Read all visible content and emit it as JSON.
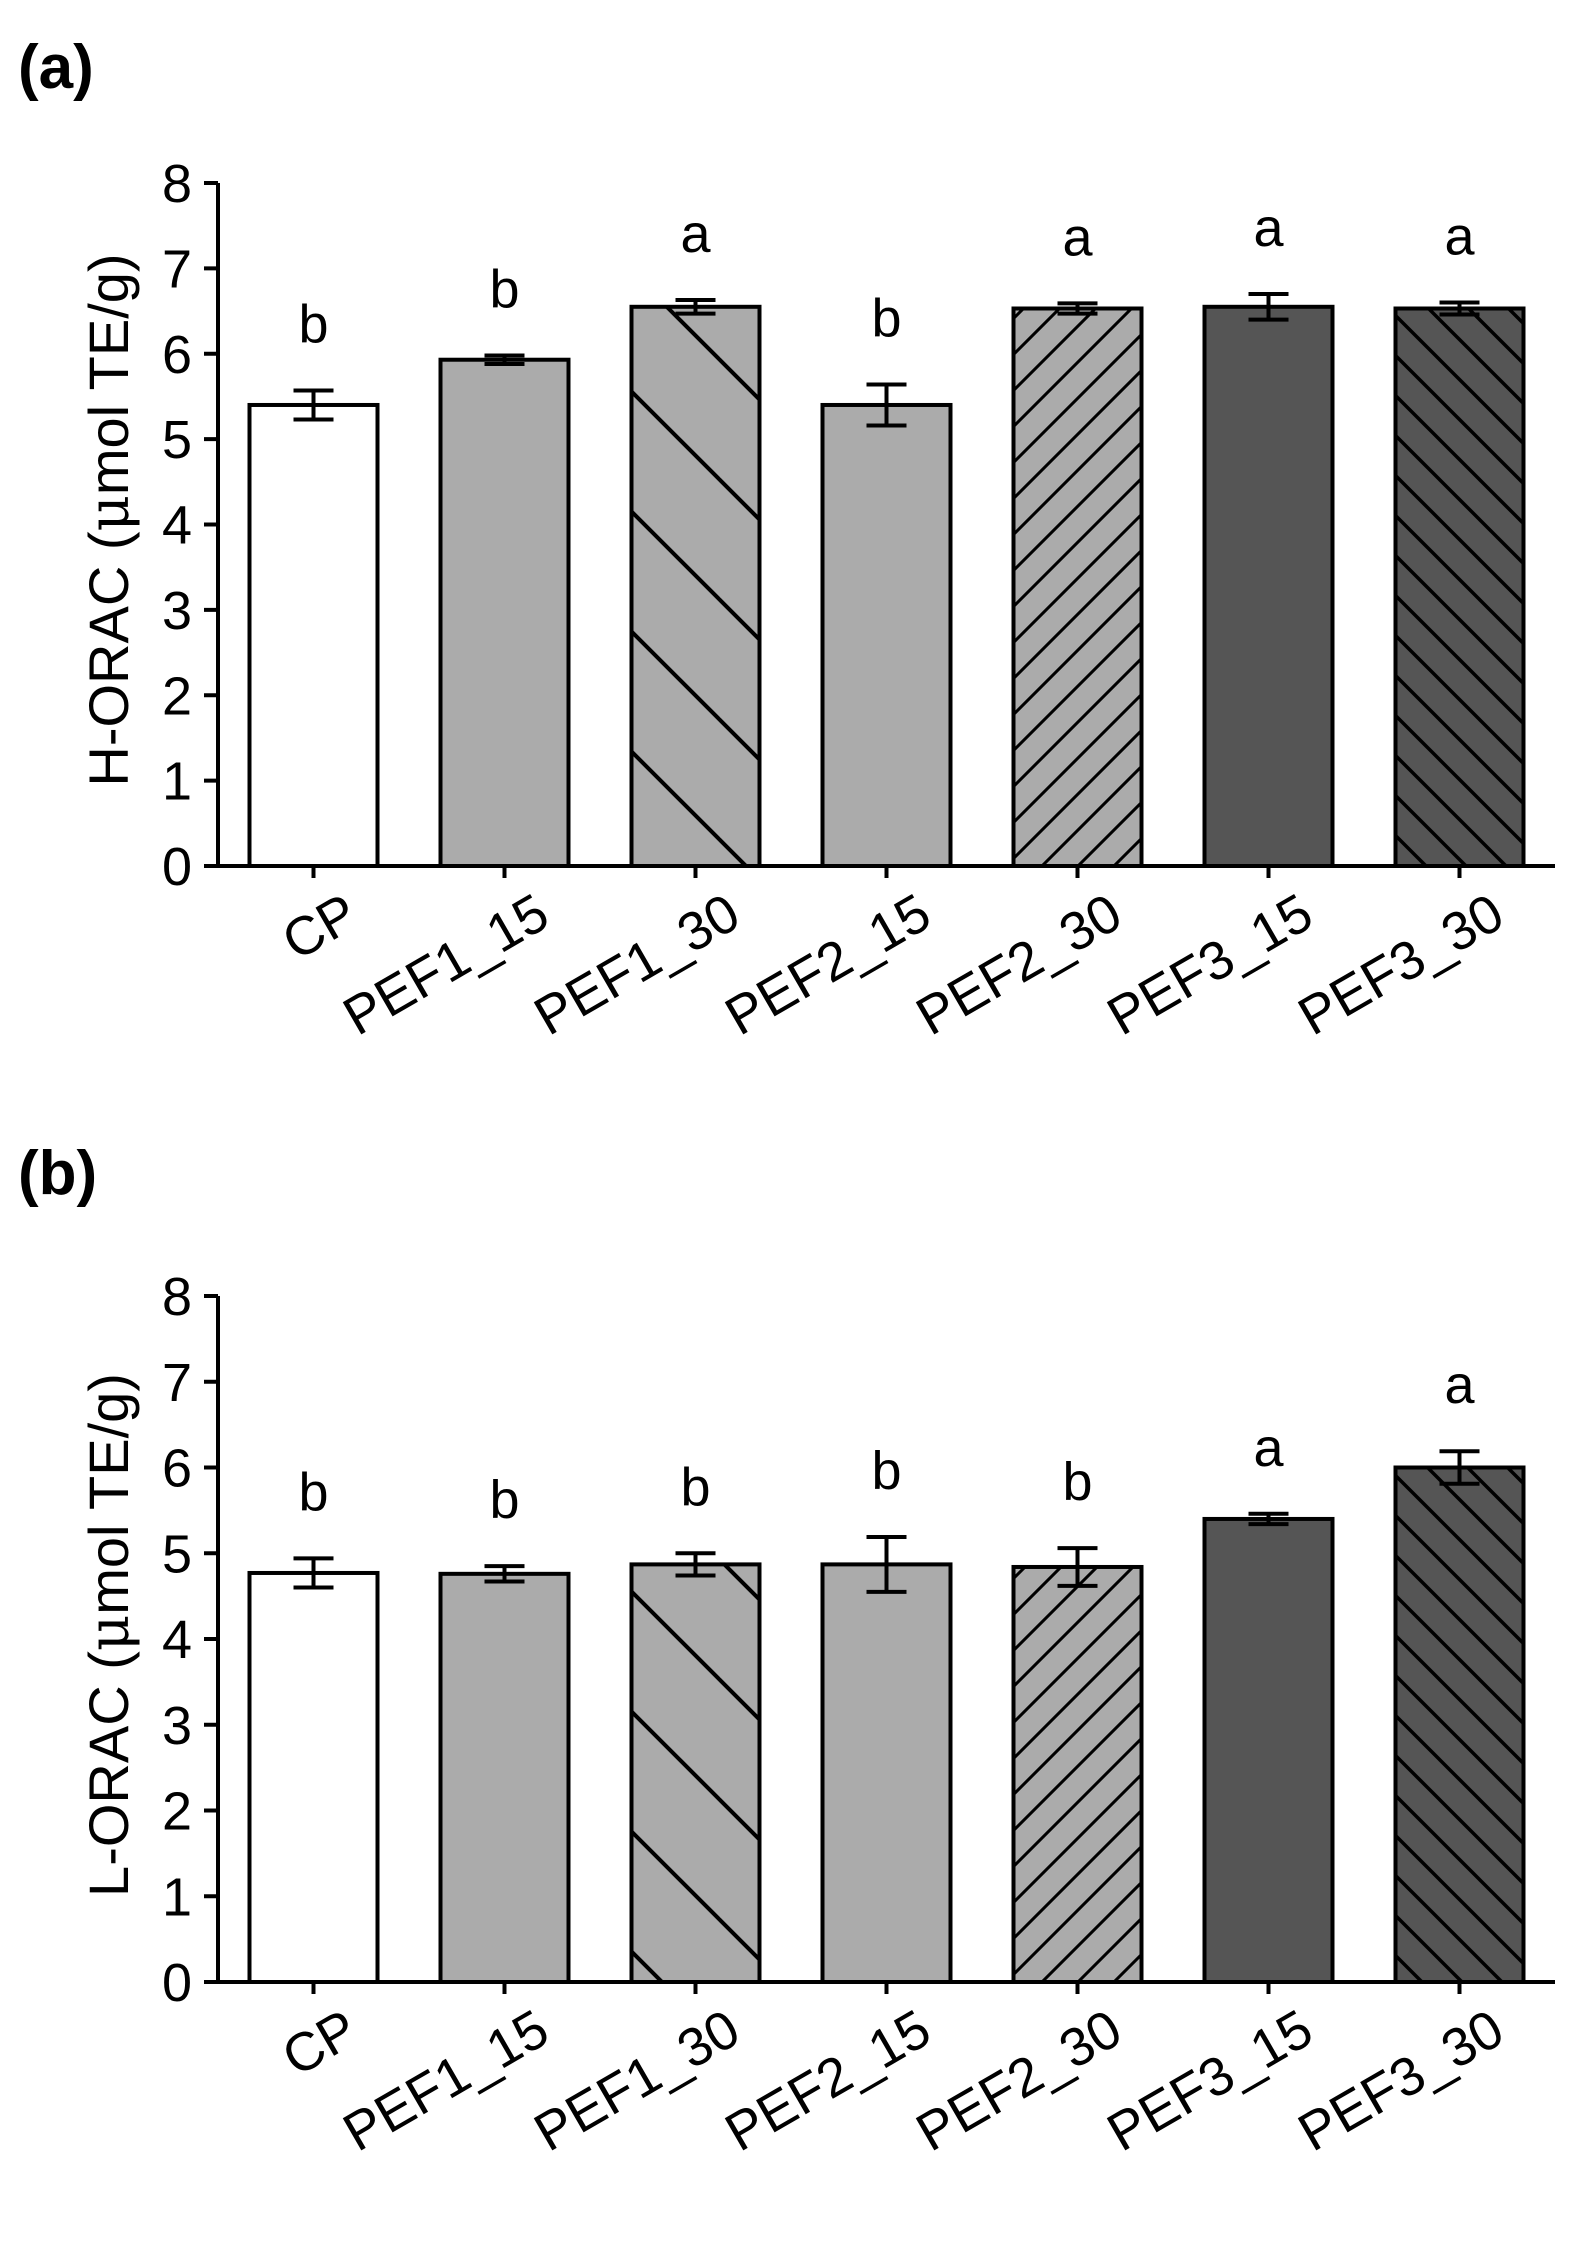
{
  "colors": {
    "CP": "#ffffff",
    "PEF1": "#ababab",
    "PEF2": "#ababab",
    "PEF3": "#555555",
    "outline": "#000000"
  },
  "chart_data": [
    {
      "panel_label": "(a)",
      "type": "bar",
      "title": "",
      "xlabel": "",
      "ylabel_main": "H-ORAC (",
      "ylabel_mu": "μ",
      "ylabel_rest": "mol TE/g)",
      "ylim": [
        0,
        8
      ],
      "yticks": [
        "0",
        "1",
        "2",
        "3",
        "4",
        "5",
        "6",
        "7",
        "8"
      ],
      "categories": [
        "CP",
        "PEF1_15",
        "PEF1_30",
        "PEF2_15",
        "PEF2_30",
        "PEF3_15",
        "PEF3_30"
      ],
      "values": [
        5.4,
        5.93,
        6.55,
        5.4,
        6.53,
        6.55,
        6.53
      ],
      "errors": [
        0.17,
        0.05,
        0.08,
        0.24,
        0.06,
        0.15,
        0.07
      ],
      "letters": [
        "b",
        "b",
        "a",
        "b",
        "a",
        "a",
        "a"
      ],
      "fills": [
        "white",
        "light",
        "light-backslash",
        "light",
        "light-slash",
        "dark",
        "dark-backslash"
      ]
    },
    {
      "panel_label": "(b)",
      "type": "bar",
      "title": "",
      "xlabel": "",
      "ylabel_main": "L-ORAC (",
      "ylabel_mu": "μ",
      "ylabel_rest": "mol TE/g)",
      "ylim": [
        0,
        8
      ],
      "yticks": [
        "0",
        "1",
        "2",
        "3",
        "4",
        "5",
        "6",
        "7",
        "8"
      ],
      "categories": [
        "CP",
        "PEF1_15",
        "PEF1_30",
        "PEF2_15",
        "PEF2_30",
        "PEF3_15",
        "PEF3_30"
      ],
      "values": [
        4.77,
        4.76,
        4.87,
        4.87,
        4.84,
        5.4,
        6.0
      ],
      "errors": [
        0.17,
        0.09,
        0.13,
        0.32,
        0.22,
        0.06,
        0.19
      ],
      "letters": [
        "b",
        "b",
        "b",
        "b",
        "b",
        "a",
        "a"
      ],
      "fills": [
        "white",
        "light",
        "light-backslash",
        "light",
        "light-slash",
        "dark",
        "dark-backslash"
      ]
    }
  ]
}
